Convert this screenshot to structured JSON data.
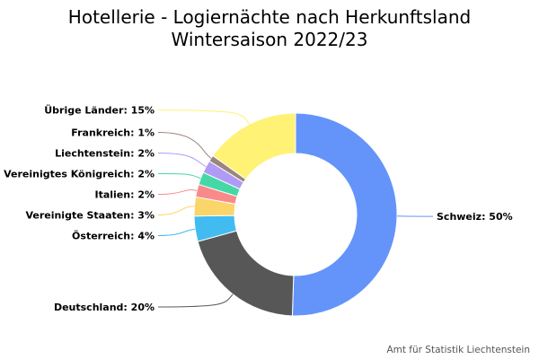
{
  "title_line1": "Hotellerie - Logiernächte nach Herkunftsland",
  "title_line2": "Wintersaison 2022/23",
  "credit": "Amt für Statistik Liechtenstein",
  "chart_data": {
    "type": "pie",
    "donut": true,
    "title": "Hotellerie - Logiernächte nach Herkunftsland Wintersaison 2022/23",
    "unit": "%",
    "slices": [
      {
        "label": "Schweiz",
        "value": 50,
        "color": "#6494fa",
        "display": "Schweiz: 50%"
      },
      {
        "label": "Deutschland",
        "value": 20,
        "color": "#575757",
        "display": "Deutschland: 20%"
      },
      {
        "label": "Österreich",
        "value": 4,
        "color": "#42bcf0",
        "display": "Österreich: 4%"
      },
      {
        "label": "Vereinigte Staaten",
        "value": 3,
        "color": "#fbd46a",
        "display": "Vereinigte Staaten: 3%"
      },
      {
        "label": "Italien",
        "value": 2,
        "color": "#fa8a8a",
        "display": "Italien: 2%"
      },
      {
        "label": "Vereinigtes Königreich",
        "value": 2,
        "color": "#45d8a6",
        "display": "Vereinigtes Königreich: 2%"
      },
      {
        "label": "Liechtenstein",
        "value": 2,
        "color": "#b09af5",
        "display": "Liechtenstein: 2%"
      },
      {
        "label": "Frankreich",
        "value": 1,
        "color": "#9b857c",
        "display": "Frankreich: 1%"
      },
      {
        "label": "Übrige Länder",
        "value": 15,
        "color": "#fff275",
        "display": "Übrige Länder: 15%"
      }
    ],
    "legend": "none",
    "labels": "outside-with-connectors"
  }
}
